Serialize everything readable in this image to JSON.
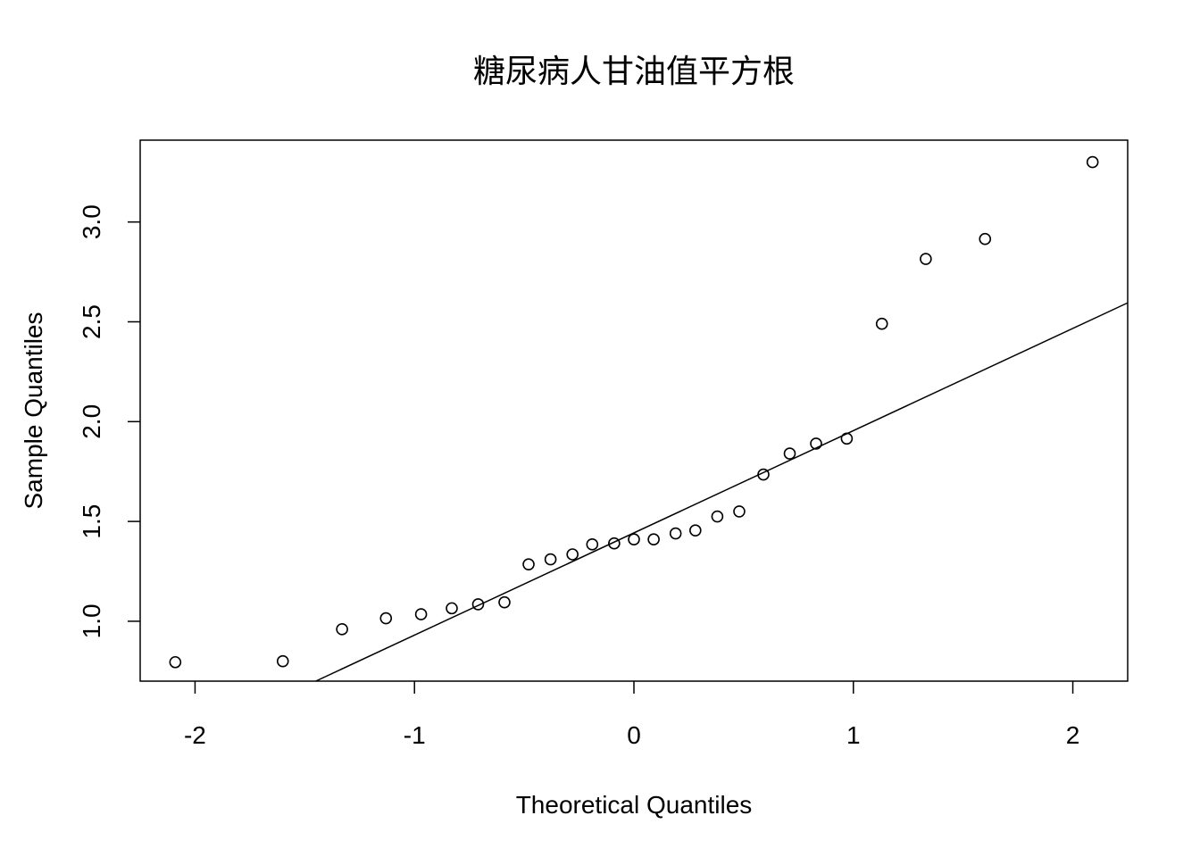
{
  "chart_data": {
    "type": "scatter",
    "title": "糖尿病人甘油值平方根",
    "xlabel": "Theoretical Quantiles",
    "ylabel": "Sample Quantiles",
    "xlim": [
      -2.25,
      2.25
    ],
    "ylim": [
      0.7,
      3.41
    ],
    "xticks": [
      -2,
      -1,
      0,
      1,
      2
    ],
    "xtick_labels": [
      "-2",
      "-1",
      "0",
      "1",
      "2"
    ],
    "yticks": [
      1.0,
      1.5,
      2.0,
      2.5,
      3.0
    ],
    "ytick_labels": [
      "1.0",
      "1.5",
      "2.0",
      "2.5",
      "3.0"
    ],
    "grid": false,
    "points": {
      "x": [
        -2.09,
        -1.6,
        -1.33,
        -1.13,
        -0.97,
        -0.83,
        -0.71,
        -0.59,
        -0.48,
        -0.38,
        -0.28,
        -0.19,
        -0.09,
        0.0,
        0.09,
        0.19,
        0.28,
        0.38,
        0.48,
        0.59,
        0.71,
        0.83,
        0.97,
        1.13,
        1.33,
        1.6,
        2.09
      ],
      "y": [
        0.795,
        0.8,
        0.96,
        1.015,
        1.035,
        1.065,
        1.085,
        1.095,
        1.285,
        1.31,
        1.335,
        1.385,
        1.39,
        1.41,
        1.41,
        1.44,
        1.455,
        1.525,
        1.55,
        1.735,
        1.84,
        1.89,
        1.915,
        2.49,
        2.815,
        2.915,
        3.3
      ]
    },
    "reference_line": {
      "x": [
        -1.45,
        2.25
      ],
      "y": [
        0.7,
        2.595
      ]
    }
  }
}
